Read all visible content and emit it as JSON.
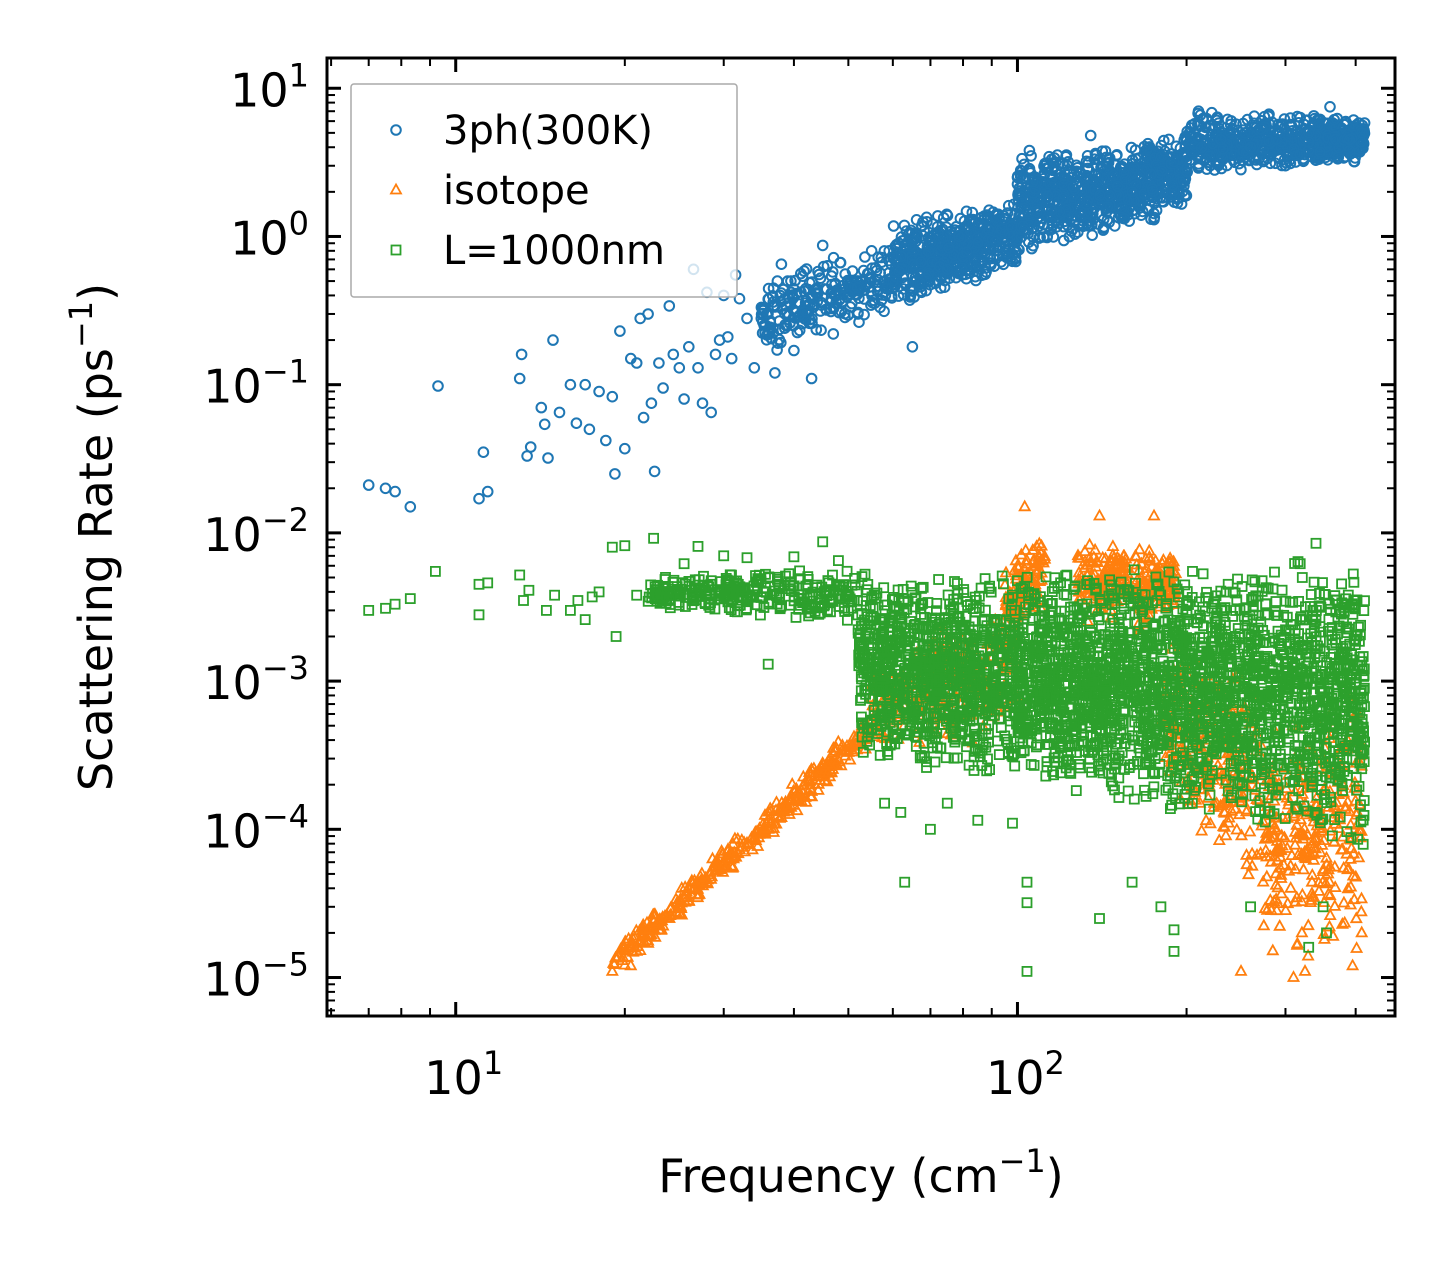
{
  "chart_data": {
    "type": "scatter",
    "xscale": "log",
    "yscale": "log",
    "xlim": [
      5.9,
      470
    ],
    "ylim": [
      5.5e-06,
      16
    ],
    "xlabel": "Frequency (cm",
    "xlabel_sup": "−1",
    "xlabel_suffix": ")",
    "ylabel": "Scattering Rate (ps",
    "ylabel_sup": "−1",
    "ylabel_suffix": ")",
    "x_ticks": [
      {
        "value": 10,
        "base": "10",
        "exp": "1"
      },
      {
        "value": 100,
        "base": "10",
        "exp": "2"
      }
    ],
    "y_ticks": [
      {
        "value": 10,
        "base": "10",
        "exp": "1"
      },
      {
        "value": 1,
        "base": "10",
        "exp": "0"
      },
      {
        "value": 0.1,
        "base": "10",
        "exp": "−1"
      },
      {
        "value": 0.01,
        "base": "10",
        "exp": "−2"
      },
      {
        "value": 0.001,
        "base": "10",
        "exp": "−3"
      },
      {
        "value": 0.0001,
        "base": "10",
        "exp": "−4"
      },
      {
        "value": 1e-05,
        "base": "10",
        "exp": "−5"
      }
    ],
    "legend_position": "top-left",
    "series": [
      {
        "name": "3ph(300K)",
        "marker": "circle",
        "color": "#1f77b4",
        "points": [
          [
            7,
            0.021
          ],
          [
            7.5,
            0.02
          ],
          [
            7.8,
            0.019
          ],
          [
            8.3,
            0.015
          ],
          [
            9.3,
            0.098
          ],
          [
            11,
            0.017
          ],
          [
            11.2,
            0.035
          ],
          [
            11.4,
            0.019
          ],
          [
            13,
            0.11
          ],
          [
            13.1,
            0.16
          ],
          [
            13.4,
            0.033
          ],
          [
            13.6,
            0.038
          ],
          [
            14.2,
            0.07
          ],
          [
            14.4,
            0.054
          ],
          [
            14.6,
            0.032
          ],
          [
            14.9,
            0.2
          ],
          [
            15.3,
            0.065
          ],
          [
            16,
            0.1
          ],
          [
            16.4,
            0.055
          ],
          [
            17,
            0.1
          ],
          [
            17.3,
            0.05
          ],
          [
            18,
            0.09
          ],
          [
            18.5,
            0.042
          ],
          [
            19,
            0.083
          ],
          [
            19.2,
            0.025
          ],
          [
            19.6,
            0.23
          ],
          [
            20,
            0.037
          ],
          [
            20.5,
            0.15
          ],
          [
            21,
            0.14
          ],
          [
            21.3,
            0.28
          ],
          [
            21.6,
            0.06
          ],
          [
            22,
            0.3
          ],
          [
            22.3,
            0.075
          ],
          [
            22.6,
            0.026
          ],
          [
            23,
            0.14
          ],
          [
            23.4,
            0.095
          ],
          [
            24,
            0.34
          ],
          [
            24.4,
            0.16
          ],
          [
            25,
            0.13
          ],
          [
            25.5,
            0.08
          ],
          [
            26,
            0.18
          ],
          [
            26.5,
            0.6
          ],
          [
            27,
            0.13
          ],
          [
            27.5,
            0.075
          ],
          [
            28,
            0.42
          ],
          [
            28.5,
            0.065
          ],
          [
            29,
            0.16
          ],
          [
            29.5,
            0.2
          ],
          [
            30,
            0.4
          ],
          [
            30.5,
            0.21
          ],
          [
            31,
            0.15
          ],
          [
            31.5,
            0.55
          ],
          [
            32,
            0.38
          ],
          [
            33,
            0.28
          ],
          [
            34,
            0.13
          ],
          [
            35,
            0.28
          ],
          [
            36,
            0.23
          ],
          [
            37,
            0.12
          ],
          [
            38,
            0.65
          ],
          [
            39,
            0.5
          ],
          [
            40,
            0.17
          ],
          [
            41,
            0.35
          ],
          [
            43,
            0.11
          ],
          [
            45,
            0.87
          ],
          [
            47,
            0.22
          ],
          [
            50,
            0.4
          ],
          [
            52,
            0.3
          ],
          [
            55,
            0.8
          ],
          [
            60,
            0.5
          ],
          [
            65,
            0.18
          ],
          [
            70,
            1.0
          ],
          [
            75,
            0.6
          ],
          [
            85,
            0.9
          ],
          [
            95,
            1.3
          ],
          [
            100,
            2.5
          ],
          [
            105,
            3.8
          ],
          [
            115,
            1.5
          ],
          [
            125,
            2.5
          ],
          [
            135,
            4.8
          ],
          [
            150,
            3.5
          ],
          [
            160,
            2.0
          ],
          [
            175,
            1.3
          ],
          [
            190,
            3.2
          ],
          [
            210,
            7.0
          ],
          [
            230,
            4.5
          ],
          [
            260,
            4.0
          ],
          [
            280,
            6.5
          ],
          [
            300,
            3.0
          ],
          [
            330,
            5.0
          ],
          [
            360,
            7.5
          ],
          [
            390,
            4.5
          ],
          [
            410,
            5.0
          ]
        ],
        "bands": [
          {
            "x": [
              35,
              60
            ],
            "y_lo": [
              0.15,
              0.3
            ],
            "y_hi": [
              0.5,
              1.0
            ],
            "n": 250
          },
          {
            "x": [
              60,
              100
            ],
            "y_lo": [
              0.3,
              0.6
            ],
            "y_hi": [
              1.3,
              1.8
            ],
            "n": 550
          },
          {
            "x": [
              100,
              200
            ],
            "y_lo": [
              0.7,
              1.5
            ],
            "y_hi": [
              3.5,
              5.0
            ],
            "n": 800
          },
          {
            "x": [
              200,
              415
            ],
            "y_lo": [
              2.5,
              3.2
            ],
            "y_hi": [
              7.0,
              6.5
            ],
            "n": 650
          }
        ]
      },
      {
        "name": "isotope",
        "marker": "triangle",
        "color": "#ff7f0e",
        "points": [
          [
            19,
            1.1e-05
          ],
          [
            19.8,
            1.3e-05
          ],
          [
            20.5,
            1.2e-05
          ],
          [
            21,
            1.5e-05
          ],
          [
            22,
            1.7e-05
          ],
          [
            23,
            2.1e-05
          ],
          [
            24,
            2.5e-05
          ],
          [
            25,
            2.7e-05
          ],
          [
            26,
            3.3e-05
          ],
          [
            27,
            3.6e-05
          ],
          [
            28,
            4.4e-05
          ],
          [
            29,
            5.2e-05
          ],
          [
            30,
            5.7e-05
          ],
          [
            31,
            6.6e-05
          ],
          [
            32,
            7.3e-05
          ],
          [
            34,
            8.6e-05
          ],
          [
            36,
            0.0001
          ],
          [
            38,
            0.00012
          ],
          [
            40,
            0.000145
          ],
          [
            43,
            0.00018
          ],
          [
            46,
            0.00024
          ],
          [
            50,
            0.00033
          ],
          [
            54,
            0.0005
          ],
          [
            103,
            0.015
          ],
          [
            140,
            0.013
          ],
          [
            175,
            0.013
          ],
          [
            250,
            1.1e-05
          ],
          [
            310,
            1e-05
          ],
          [
            325,
            1.1e-05
          ],
          [
            395,
            1.2e-05
          ],
          [
            410,
            2e-05
          ]
        ],
        "bands": [
          {
            "x": [
              19,
              55
            ],
            "y_lo": [
              1e-05,
              0.00035
            ],
            "y_hi": [
              1.5e-05,
              0.00065
            ],
            "n": 350
          },
          {
            "x": [
              55,
              100
            ],
            "y_lo": [
              0.0003,
              0.0004
            ],
            "y_hi": [
              0.0015,
              0.004
            ],
            "n": 250
          },
          {
            "x": [
              95,
              112
            ],
            "y_lo": [
              0.002,
              0.003
            ],
            "y_hi": [
              0.006,
              0.0105
            ],
            "n": 120
          },
          {
            "x": [
              128,
              158
            ],
            "y_lo": [
              0.002,
              0.003
            ],
            "y_hi": [
              0.009,
              0.009
            ],
            "n": 140
          },
          {
            "x": [
              162,
              192
            ],
            "y_lo": [
              0.002,
              0.003
            ],
            "y_hi": [
              0.0085,
              0.007
            ],
            "n": 140
          },
          {
            "x": [
              180,
              270
            ],
            "y_lo": [
              0.00015,
              3e-05
            ],
            "y_hi": [
              0.002,
              0.001
            ],
            "n": 250
          },
          {
            "x": [
              270,
              410
            ],
            "y_lo": [
              1e-05,
              1.2e-05
            ],
            "y_hi": [
              0.0008,
              0.0009
            ],
            "n": 300
          }
        ]
      },
      {
        "name": "L=1000nm",
        "marker": "square",
        "color": "#2ca02c",
        "points": [
          [
            7,
            0.003
          ],
          [
            7.5,
            0.0031
          ],
          [
            7.8,
            0.0033
          ],
          [
            8.3,
            0.0036
          ],
          [
            9.2,
            0.0055
          ],
          [
            11,
            0.0028
          ],
          [
            11,
            0.0045
          ],
          [
            11.4,
            0.0046
          ],
          [
            13,
            0.0052
          ],
          [
            13.2,
            0.0035
          ],
          [
            13.5,
            0.0041
          ],
          [
            14.5,
            0.003
          ],
          [
            15,
            0.0038
          ],
          [
            16,
            0.003
          ],
          [
            16.5,
            0.0035
          ],
          [
            17,
            0.0026
          ],
          [
            17.5,
            0.0037
          ],
          [
            18,
            0.004
          ],
          [
            19,
            0.008
          ],
          [
            19.3,
            0.002
          ],
          [
            20,
            0.0082
          ],
          [
            21,
            0.0038
          ],
          [
            22.5,
            0.0092
          ],
          [
            24,
            0.0035
          ],
          [
            25.5,
            0.0062
          ],
          [
            27,
            0.0081
          ],
          [
            30,
            0.007
          ],
          [
            33,
            0.0068
          ],
          [
            36,
            0.0013
          ],
          [
            40,
            0.0069
          ],
          [
            45,
            0.0087
          ],
          [
            48,
            0.0065
          ],
          [
            58,
            0.00015
          ],
          [
            62,
            0.00013
          ],
          [
            63,
            4.4e-05
          ],
          [
            70,
            0.0001
          ],
          [
            75,
            0.00015
          ],
          [
            85,
            0.000115
          ],
          [
            98,
            0.00011
          ],
          [
            104,
            4.4e-05
          ],
          [
            104,
            3.2e-05
          ],
          [
            104,
            1.1e-05
          ],
          [
            140,
            2.5e-05
          ],
          [
            160,
            4.4e-05
          ],
          [
            180,
            3e-05
          ],
          [
            190,
            2.1e-05
          ],
          [
            190,
            1.5e-05
          ],
          [
            260,
            3e-05
          ],
          [
            330,
            1.6e-05
          ],
          [
            340,
            0.0085
          ],
          [
            350,
            3e-05
          ],
          [
            355,
            2e-05
          ]
        ],
        "bands": [
          {
            "x": [
              22,
              52
            ],
            "y_lo": [
              0.003,
              0.0025
            ],
            "y_hi": [
              0.005,
              0.006
            ],
            "n": 300
          },
          {
            "x": [
              52,
              100
            ],
            "y_lo": [
              0.0003,
              0.0002
            ],
            "y_hi": [
              0.006,
              0.0055
            ],
            "n": 1000
          },
          {
            "x": [
              100,
              200
            ],
            "y_lo": [
              0.0002,
              0.00012
            ],
            "y_hi": [
              0.0055,
              0.0065
            ],
            "n": 1200
          },
          {
            "x": [
              200,
              415
            ],
            "y_lo": [
              0.00012,
              7e-05
            ],
            "y_hi": [
              0.006,
              0.0075
            ],
            "n": 1200
          }
        ]
      }
    ]
  }
}
